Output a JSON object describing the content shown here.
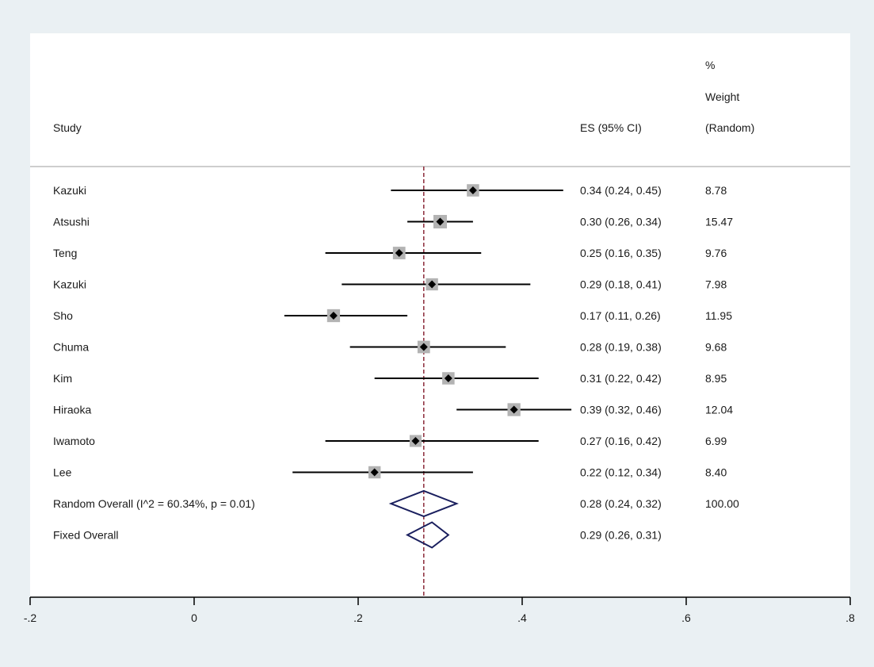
{
  "chart_data": {
    "type": "forest",
    "headers": {
      "study": "Study",
      "es": "ES (95% CI)",
      "weight_line1": "%",
      "weight_line2": "Weight",
      "weight_line3": "(Random)"
    },
    "studies": [
      {
        "name": "Kazuki",
        "es": 0.34,
        "lo": 0.24,
        "hi": 0.45,
        "es_text": "0.34 (0.24, 0.45)",
        "weight": 8.78,
        "weight_text": "8.78"
      },
      {
        "name": "Atsushi",
        "es": 0.3,
        "lo": 0.26,
        "hi": 0.34,
        "es_text": "0.30 (0.26, 0.34)",
        "weight": 15.47,
        "weight_text": "15.47"
      },
      {
        "name": "Teng",
        "es": 0.25,
        "lo": 0.16,
        "hi": 0.35,
        "es_text": "0.25 (0.16, 0.35)",
        "weight": 9.76,
        "weight_text": "9.76"
      },
      {
        "name": "Kazuki",
        "es": 0.29,
        "lo": 0.18,
        "hi": 0.41,
        "es_text": "0.29 (0.18, 0.41)",
        "weight": 7.98,
        "weight_text": "7.98"
      },
      {
        "name": "Sho",
        "es": 0.17,
        "lo": 0.11,
        "hi": 0.26,
        "es_text": "0.17 (0.11, 0.26)",
        "weight": 11.95,
        "weight_text": "11.95"
      },
      {
        "name": "Chuma",
        "es": 0.28,
        "lo": 0.19,
        "hi": 0.38,
        "es_text": "0.28 (0.19, 0.38)",
        "weight": 9.68,
        "weight_text": "9.68"
      },
      {
        "name": "Kim",
        "es": 0.31,
        "lo": 0.22,
        "hi": 0.42,
        "es_text": "0.31 (0.22, 0.42)",
        "weight": 8.95,
        "weight_text": "8.95"
      },
      {
        "name": "Hiraoka",
        "es": 0.39,
        "lo": 0.32,
        "hi": 0.46,
        "es_text": "0.39 (0.32, 0.46)",
        "weight": 12.04,
        "weight_text": "12.04"
      },
      {
        "name": "Iwamoto",
        "es": 0.27,
        "lo": 0.16,
        "hi": 0.42,
        "es_text": "0.27 (0.16, 0.42)",
        "weight": 6.99,
        "weight_text": "6.99"
      },
      {
        "name": "Lee",
        "es": 0.22,
        "lo": 0.12,
        "hi": 0.34,
        "es_text": "0.22 (0.12, 0.34)",
        "weight": 8.4,
        "weight_text": "8.40"
      }
    ],
    "overall": [
      {
        "name": "Random Overall  (I^2 = 60.34%, p = 0.01)",
        "es": 0.28,
        "lo": 0.24,
        "hi": 0.32,
        "es_text": "0.28 (0.24, 0.32)",
        "weight_text": "100.00"
      },
      {
        "name": "Fixed Overall",
        "es": 0.29,
        "lo": 0.26,
        "hi": 0.31,
        "es_text": "0.29 (0.26, 0.31)",
        "weight_text": ""
      }
    ],
    "reference_line": 0.28,
    "xlim": [
      -0.2,
      0.8
    ],
    "xticks": [
      -0.2,
      0,
      0.2,
      0.4,
      0.6,
      0.8
    ],
    "xtick_labels": [
      "-.2",
      "0",
      ".2",
      ".4",
      ".6",
      ".8"
    ],
    "colors": {
      "background": "#eaf0f3",
      "panel": "#ffffff",
      "ci_line": "#000000",
      "weight_box": "#b3b3b3",
      "point": "#000000",
      "diamond": "#1a1f5e",
      "reference": "#8b2a3a",
      "axis": "#000000",
      "separator": "#bdbdbd"
    }
  }
}
